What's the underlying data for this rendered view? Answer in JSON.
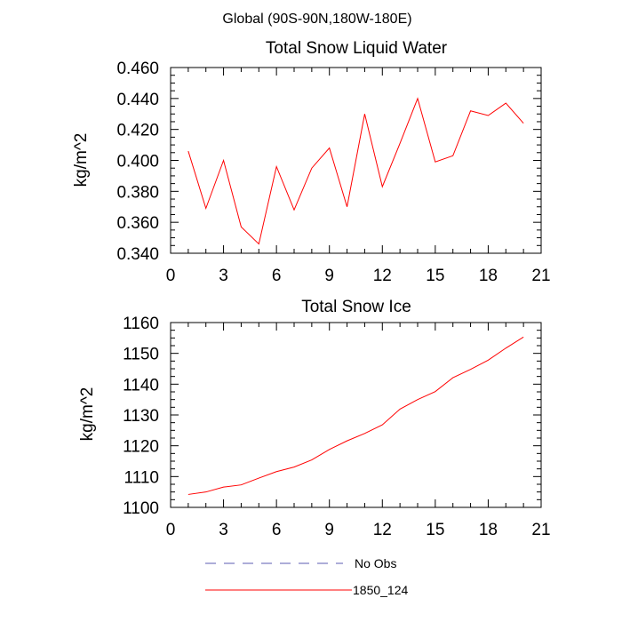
{
  "figure": {
    "suptitle": "Global (90S-90N,180W-180E)",
    "legend": {
      "placement": "bottom-center",
      "entries": [
        {
          "label": "No Obs",
          "color": "#5b5bb0",
          "style": "dashed"
        },
        {
          "label": "1850_124",
          "color": "#ff0000",
          "style": "solid"
        }
      ]
    }
  },
  "chart_data": [
    {
      "type": "line",
      "title": "Total Snow Liquid Water",
      "xlabel": "",
      "ylabel": "kg/m^2",
      "xlim": [
        0,
        21
      ],
      "ylim": [
        0.34,
        0.46
      ],
      "xticks": [
        0,
        3,
        6,
        9,
        12,
        15,
        18,
        21
      ],
      "xtick_labels": [
        "0",
        "3",
        "6",
        "9",
        "12",
        "15",
        "18",
        "21"
      ],
      "yticks": [
        0.34,
        0.36,
        0.38,
        0.4,
        0.42,
        0.44,
        0.46
      ],
      "ytick_labels": [
        "0.340",
        "0.360",
        "0.380",
        "0.400",
        "0.420",
        "0.440",
        "0.460"
      ],
      "grid": false,
      "series": [
        {
          "name": "1850_124",
          "color": "#ff0000",
          "x": [
            1,
            2,
            3,
            4,
            5,
            6,
            7,
            8,
            9,
            10,
            11,
            12,
            13,
            14,
            15,
            16,
            17,
            18,
            19,
            20
          ],
          "y": [
            0.406,
            0.369,
            0.4,
            0.357,
            0.346,
            0.396,
            0.368,
            0.395,
            0.408,
            0.37,
            0.43,
            0.383,
            0.411,
            0.44,
            0.399,
            0.403,
            0.432,
            0.429,
            0.437,
            0.424
          ]
        }
      ]
    },
    {
      "type": "line",
      "title": "Total Snow Ice",
      "xlabel": "",
      "ylabel": "kg/m^2",
      "xlim": [
        0,
        21
      ],
      "ylim": [
        1100,
        1160
      ],
      "xticks": [
        0,
        3,
        6,
        9,
        12,
        15,
        18,
        21
      ],
      "xtick_labels": [
        "0",
        "3",
        "6",
        "9",
        "12",
        "15",
        "18",
        "21"
      ],
      "yticks": [
        1100,
        1110,
        1120,
        1130,
        1140,
        1150,
        1160
      ],
      "ytick_labels": [
        "1100",
        "1110",
        "1120",
        "1130",
        "1140",
        "1150",
        "1160"
      ],
      "grid": false,
      "series": [
        {
          "name": "1850_124",
          "color": "#ff0000",
          "x": [
            1,
            2,
            3,
            4,
            5,
            6,
            7,
            8,
            9,
            10,
            11,
            12,
            13,
            14,
            15,
            16,
            17,
            18,
            19,
            20
          ],
          "y": [
            1104.2,
            1105.0,
            1106.6,
            1107.3,
            1109.5,
            1111.6,
            1113.1,
            1115.4,
            1118.8,
            1121.6,
            1124.0,
            1126.8,
            1131.9,
            1135.0,
            1137.6,
            1142.1,
            1144.8,
            1147.8,
            1151.7,
            1155.3
          ]
        }
      ]
    }
  ]
}
